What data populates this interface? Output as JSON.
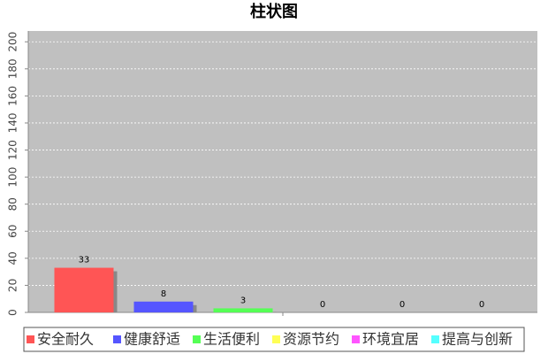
{
  "chart_data": {
    "type": "bar",
    "title": "柱状图",
    "categories": [
      null
    ],
    "series": [
      {
        "name": "安全耐久",
        "color": "#ff5555",
        "values": [
          33
        ]
      },
      {
        "name": "健康舒适",
        "color": "#5555ff",
        "values": [
          8
        ]
      },
      {
        "name": "生活便利",
        "color": "#55ff55",
        "values": [
          3
        ]
      },
      {
        "name": "资源节约",
        "color": "#ffff55",
        "values": [
          0
        ]
      },
      {
        "name": "环境宜居",
        "color": "#ff55ff",
        "values": [
          0
        ]
      },
      {
        "name": "提高与创新",
        "color": "#55ffff",
        "values": [
          0
        ]
      }
    ],
    "ylim": [
      0,
      208
    ],
    "yticks": [
      0,
      20,
      40,
      60,
      80,
      100,
      120,
      140,
      160,
      180,
      200
    ],
    "grid": true,
    "legend": "bottom"
  }
}
